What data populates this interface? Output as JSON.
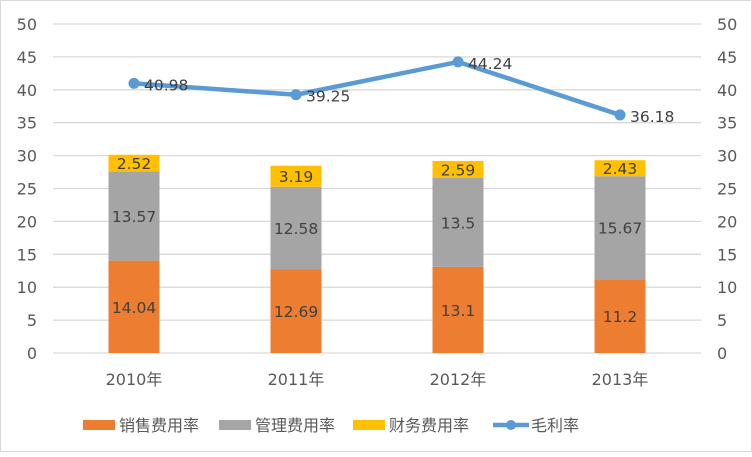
{
  "chart_data": {
    "type": "bar",
    "subtype": "stacked-bar-with-line",
    "title": "",
    "xlabel": "",
    "ylabel": "",
    "ylabel_right": "",
    "categories": [
      "2010年",
      "2011年",
      "2012年",
      "2013年"
    ],
    "series": [
      {
        "name": "销售费用率",
        "type": "bar",
        "color": "#ED7D31",
        "values": [
          14.04,
          12.69,
          13.1,
          11.2
        ]
      },
      {
        "name": "管理费用率",
        "type": "bar",
        "color": "#A5A5A5",
        "values": [
          13.57,
          12.58,
          13.5,
          15.67
        ]
      },
      {
        "name": "财务费用率",
        "type": "bar",
        "color": "#FFC000",
        "values": [
          2.52,
          3.19,
          2.59,
          2.43
        ]
      },
      {
        "name": "毛利率",
        "type": "line",
        "color": "#5B9BD5",
        "axis": "right",
        "values": [
          40.98,
          39.25,
          44.24,
          36.18
        ]
      }
    ],
    "ylim": [
      0,
      50
    ],
    "ylim_right": [
      0,
      50
    ],
    "yticks": [
      0,
      5,
      10,
      15,
      20,
      25,
      30,
      35,
      40,
      45,
      50
    ],
    "grid": true,
    "legend_position": "bottom",
    "data_labels": true
  },
  "legend": {
    "items": [
      {
        "label": "销售费用率",
        "color": "#ED7D31",
        "kind": "bar"
      },
      {
        "label": "管理费用率",
        "color": "#A5A5A5",
        "kind": "bar"
      },
      {
        "label": "财务费用率",
        "color": "#FFC000",
        "kind": "bar"
      },
      {
        "label": "毛利率",
        "color": "#5B9BD5",
        "kind": "line"
      }
    ]
  }
}
